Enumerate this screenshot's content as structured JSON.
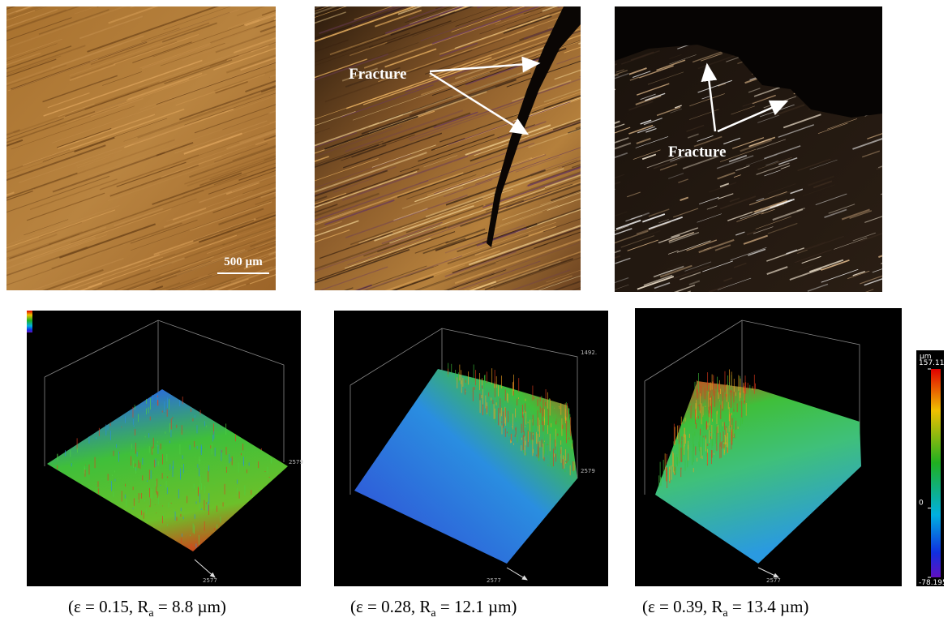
{
  "micrographs": [
    {
      "scale_bar": "500 µm"
    },
    {
      "annotation": "Fracture"
    },
    {
      "annotation": "Fracture"
    }
  ],
  "surface_maps": [
    {
      "axis_labels": [
        "2577",
        "2579"
      ]
    },
    {
      "axis_labels": [
        "2577",
        "2579",
        "1492."
      ]
    },
    {
      "axis_labels": [
        "2577"
      ]
    }
  ],
  "colorbar": {
    "unit": "µm",
    "lim": [
      -78.195,
      157.117
    ],
    "ticks": [
      157.117,
      0,
      -78.195
    ]
  },
  "captions": [
    {
      "prefix": "(ε = 0.15, R",
      "sub": "a",
      "suffix": " = 8.8 µm)"
    },
    {
      "prefix": "(ε = 0.28, R",
      "sub": "a",
      "suffix": " = 12.1 µm)"
    },
    {
      "prefix": "(ε = 0.39, R",
      "sub": "a",
      "suffix": " = 13.4 µm)"
    }
  ]
}
